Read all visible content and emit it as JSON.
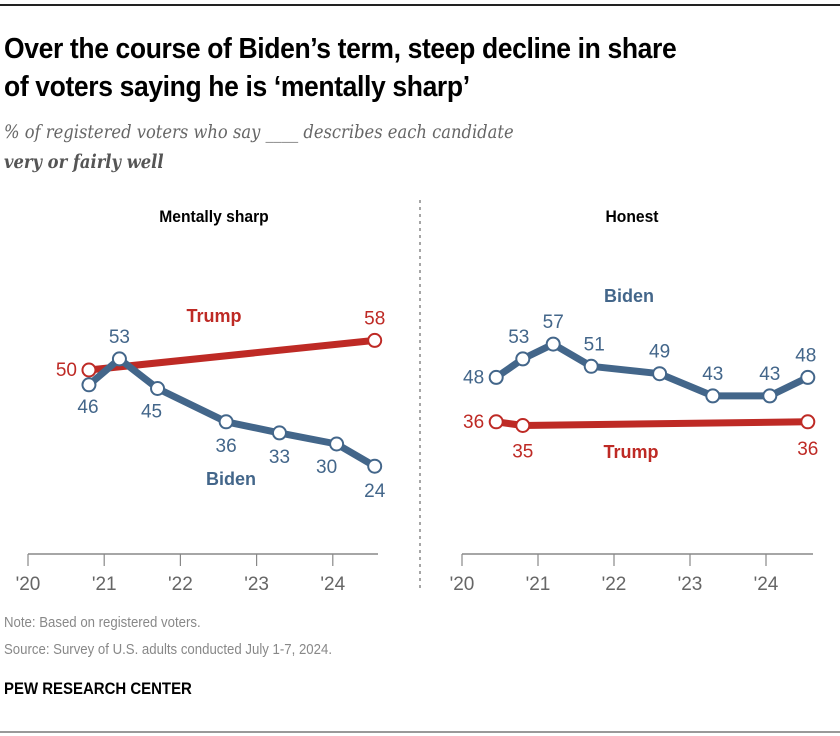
{
  "header": {
    "title_line1": "Over the course of Biden’s term, steep decline in share",
    "title_line2": "of voters saying he is ‘mentally sharp’",
    "subtitle": "% of registered voters who say ____ describes each candidate",
    "subtitle_bold": "very or fairly well"
  },
  "footer": {
    "note": "Note: Based on registered voters.",
    "source": "Source: Survey of U.S. adults conducted July 1-7, 2024.",
    "brand": "PEW RESEARCH CENTER"
  },
  "colors": {
    "biden": "#43668A",
    "trump": "#BE2A25",
    "axis": "#888888"
  },
  "chart_data": [
    {
      "type": "line",
      "title": "Mentally sharp",
      "xlabel": "",
      "ylabel": "",
      "x_ticks": [
        2020,
        2021,
        2022,
        2023,
        2024
      ],
      "x_tick_labels": [
        "'20",
        "'21",
        "'22",
        "'23",
        "'24"
      ],
      "xlim": [
        2020,
        2024.6
      ],
      "ylim": [
        0,
        70
      ],
      "grid": false,
      "series": [
        {
          "name": "Trump",
          "x": [
            2020.8,
            2024.55
          ],
          "values": [
            50,
            58
          ]
        },
        {
          "name": "Biden",
          "x": [
            2020.8,
            2021.2,
            2021.7,
            2022.6,
            2023.3,
            2024.05,
            2024.55
          ],
          "values": [
            46,
            53,
            45,
            36,
            33,
            30,
            24
          ]
        }
      ]
    },
    {
      "type": "line",
      "title": "Honest",
      "xlabel": "",
      "ylabel": "",
      "x_ticks": [
        2020,
        2021,
        2022,
        2023,
        2024
      ],
      "x_tick_labels": [
        "'20",
        "'21",
        "'22",
        "'23",
        "'24"
      ],
      "xlim": [
        2020,
        2024.6
      ],
      "ylim": [
        0,
        70
      ],
      "grid": false,
      "series": [
        {
          "name": "Biden",
          "x": [
            2020.45,
            2020.8,
            2021.2,
            2021.7,
            2022.6,
            2023.3,
            2024.05,
            2024.55
          ],
          "values": [
            48,
            53,
            57,
            51,
            49,
            43,
            43,
            48
          ]
        },
        {
          "name": "Trump",
          "x": [
            2020.45,
            2020.8,
            2024.55
          ],
          "values": [
            36,
            35,
            36
          ]
        }
      ]
    }
  ]
}
